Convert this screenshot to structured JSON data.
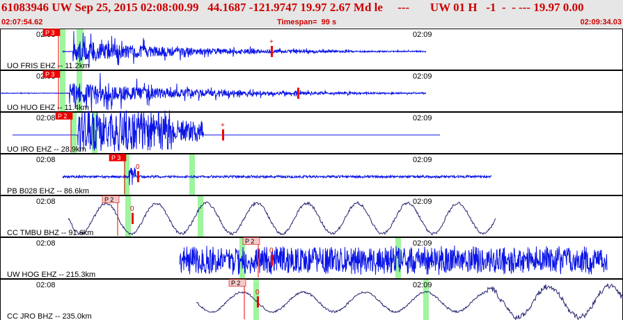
{
  "header": {
    "event_id": "61083946",
    "network": "UW",
    "date": "Sep 25, 2015",
    "time": "02:08:00.99",
    "lat": "44.1687",
    "lon": "-121.9747",
    "depth": "19.97",
    "magnitude": "2.67",
    "mag_type": "Md",
    "flag": "le",
    "dashes": "---",
    "net2": "UW",
    "version": "01",
    "htype": "H",
    "minus_one": "-1",
    "d1": "-",
    "d2": "-",
    "d3": "---",
    "value": "19.97",
    "value2": "0.00"
  },
  "subheader": {
    "start_time": "02:07:54.62",
    "timespan": "Timespan=  99 s",
    "end_time": "02:09:34.03"
  },
  "time_ticks": [
    "02:08",
    "02:09"
  ],
  "traces": [
    {
      "label": "UO FRIS EHZ -- 11.2km",
      "pick": "P 3",
      "pick_style": "red",
      "mark": "+"
    },
    {
      "label": "UO HUO EHZ -- 11.4km",
      "pick": "P 3",
      "pick_style": "red",
      "mark": ""
    },
    {
      "label": "UO IRO EHZ -- 28.9km",
      "pick": "P 2",
      "pick_style": "red",
      "mark": "+"
    },
    {
      "label": "PB B028 EHZ -- 86.6km",
      "pick": "P 3",
      "pick_style": "red",
      "mark": "0"
    },
    {
      "label": "CC TMBU BHZ -- 91.6km",
      "pick": "P 2",
      "pick_style": "pale",
      "mark": "0"
    },
    {
      "label": "UW HOG EHZ -- 215.3km",
      "pick": "P 2",
      "pick_style": "pale",
      "mark": "0"
    },
    {
      "label": "CC JRO BHZ -- 235.0km",
      "pick": "P 2",
      "pick_style": "pale",
      "mark": "0"
    }
  ],
  "colors": {
    "header_bg": "#e6e6e6",
    "header_text": "#cc0000",
    "trace_short": "#0a14e6",
    "trace_long": "#22226e",
    "pick_window": "#9ef59e",
    "pick_red": "#ee0000",
    "pick_pale": "#f7c8c8"
  }
}
